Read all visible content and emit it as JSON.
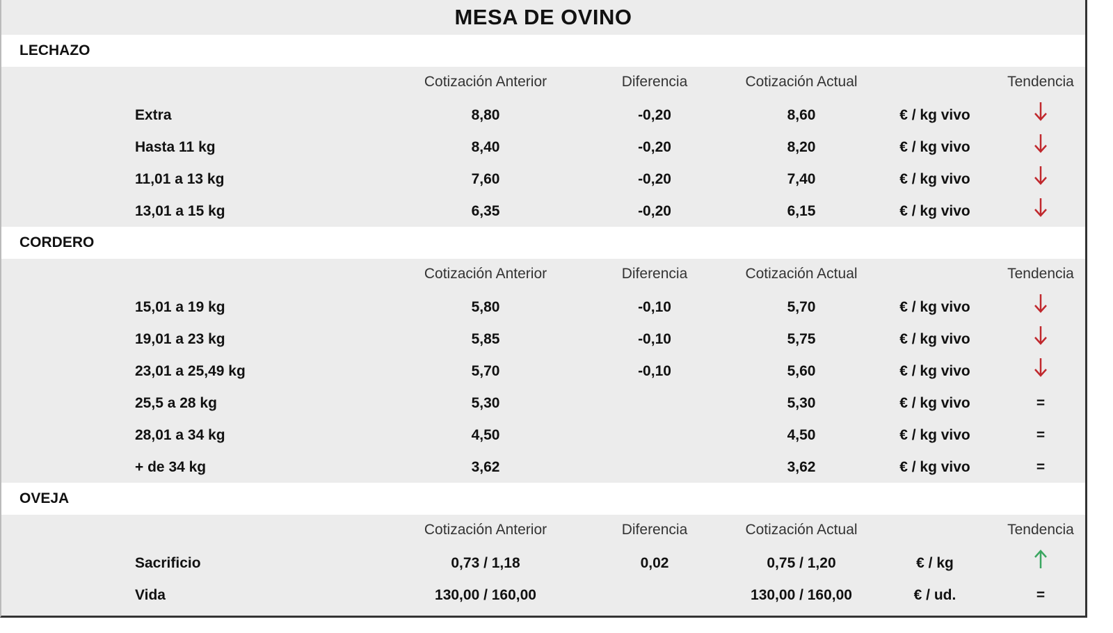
{
  "title": "MESA DE OVINO",
  "colors": {
    "down": "#c0282d",
    "up": "#3aa660"
  },
  "headers": {
    "anterior": "Cotización Anterior",
    "diferencia": "Diferencia",
    "actual": "Cotización Actual",
    "tendencia": "Tendencia"
  },
  "sections": [
    {
      "name": "LECHAZO",
      "rows": [
        {
          "label": "Extra",
          "anterior": "8,80",
          "diferencia": "-0,20",
          "actual": "8,60",
          "unit": "€ / kg vivo",
          "trend": "down"
        },
        {
          "label": "Hasta 11 kg",
          "anterior": "8,40",
          "diferencia": "-0,20",
          "actual": "8,20",
          "unit": "€ / kg vivo",
          "trend": "down"
        },
        {
          "label": "11,01 a 13 kg",
          "anterior": "7,60",
          "diferencia": "-0,20",
          "actual": "7,40",
          "unit": "€ / kg vivo",
          "trend": "down"
        },
        {
          "label": "13,01 a 15 kg",
          "anterior": "6,35",
          "diferencia": "-0,20",
          "actual": "6,15",
          "unit": "€ / kg vivo",
          "trend": "down"
        }
      ]
    },
    {
      "name": "CORDERO",
      "rows": [
        {
          "label": "15,01 a 19 kg",
          "anterior": "5,80",
          "diferencia": "-0,10",
          "actual": "5,70",
          "unit": "€ / kg vivo",
          "trend": "down"
        },
        {
          "label": "19,01 a 23 kg",
          "anterior": "5,85",
          "diferencia": "-0,10",
          "actual": "5,75",
          "unit": "€ / kg vivo",
          "trend": "down"
        },
        {
          "label": "23,01 a 25,49 kg",
          "anterior": "5,70",
          "diferencia": "-0,10",
          "actual": "5,60",
          "unit": "€ / kg vivo",
          "trend": "down"
        },
        {
          "label": "25,5 a 28 kg",
          "anterior": "5,30",
          "diferencia": "",
          "actual": "5,30",
          "unit": "€ / kg vivo",
          "trend": "="
        },
        {
          "label": "28,01 a 34 kg",
          "anterior": "4,50",
          "diferencia": "",
          "actual": "4,50",
          "unit": "€ / kg vivo",
          "trend": "="
        },
        {
          "label": "+ de 34 kg",
          "anterior": "3,62",
          "diferencia": "",
          "actual": "3,62",
          "unit": "€ / kg vivo",
          "trend": "="
        }
      ]
    },
    {
      "name": "OVEJA",
      "rows": [
        {
          "label": "Sacrificio",
          "anterior": "0,73 / 1,18",
          "diferencia": "0,02",
          "actual": "0,75 / 1,20",
          "unit": "€ / kg",
          "trend": "up"
        },
        {
          "label": "Vida",
          "anterior": "130,00 / 160,00",
          "diferencia": "",
          "actual": "130,00 / 160,00",
          "unit": "€ / ud.",
          "trend": "="
        }
      ]
    }
  ]
}
